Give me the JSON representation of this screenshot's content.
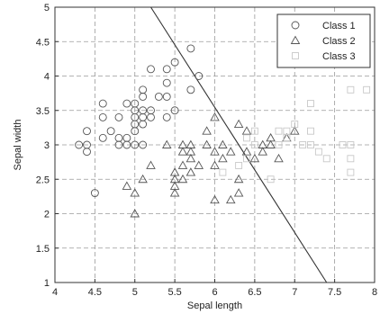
{
  "chart_data": {
    "type": "scatter",
    "title": "",
    "xlabel": "Sepal length",
    "ylabel": "Sepal width",
    "xlim": [
      4,
      8
    ],
    "ylim": [
      1,
      5
    ],
    "xticks": [
      "4",
      "4.5",
      "5",
      "5.5",
      "6",
      "6.5",
      "7",
      "7.5",
      "8"
    ],
    "yticks": [
      "1",
      "1.5",
      "2",
      "2.5",
      "3",
      "3.5",
      "4",
      "4.5",
      "5"
    ],
    "grid": true,
    "legend_position": "top-right",
    "series": [
      {
        "name": "Class 1",
        "marker": "circle",
        "color": "#555555",
        "points": [
          [
            4.3,
            3.0
          ],
          [
            4.4,
            2.9
          ],
          [
            4.4,
            3.0
          ],
          [
            4.4,
            3.2
          ],
          [
            4.5,
            2.3
          ],
          [
            4.6,
            3.1
          ],
          [
            4.6,
            3.4
          ],
          [
            4.6,
            3.6
          ],
          [
            4.7,
            3.2
          ],
          [
            4.8,
            3.0
          ],
          [
            4.8,
            3.1
          ],
          [
            4.8,
            3.4
          ],
          [
            4.9,
            3.0
          ],
          [
            4.9,
            3.1
          ],
          [
            4.9,
            3.6
          ],
          [
            5.0,
            3.0
          ],
          [
            5.0,
            3.2
          ],
          [
            5.0,
            3.3
          ],
          [
            5.0,
            3.4
          ],
          [
            5.0,
            3.5
          ],
          [
            5.0,
            3.6
          ],
          [
            5.1,
            3.3
          ],
          [
            5.1,
            3.4
          ],
          [
            5.1,
            3.5
          ],
          [
            5.1,
            3.7
          ],
          [
            5.1,
            3.8
          ],
          [
            5.2,
            3.4
          ],
          [
            5.2,
            3.5
          ],
          [
            5.2,
            4.1
          ],
          [
            5.3,
            3.7
          ],
          [
            5.4,
            3.4
          ],
          [
            5.4,
            3.7
          ],
          [
            5.4,
            3.9
          ],
          [
            5.5,
            3.5
          ],
          [
            5.5,
            4.2
          ],
          [
            5.7,
            3.8
          ],
          [
            5.7,
            4.4
          ],
          [
            5.8,
            4.0
          ],
          [
            5.4,
            4.1
          ],
          [
            5.1,
            3.0
          ]
        ]
      },
      {
        "name": "Class 2",
        "marker": "triangle",
        "color": "#555555",
        "points": [
          [
            4.9,
            2.4
          ],
          [
            5.0,
            2.0
          ],
          [
            5.0,
            2.3
          ],
          [
            5.1,
            2.5
          ],
          [
            5.2,
            2.7
          ],
          [
            5.5,
            2.3
          ],
          [
            5.5,
            2.4
          ],
          [
            5.5,
            2.5
          ],
          [
            5.5,
            2.6
          ],
          [
            5.6,
            2.5
          ],
          [
            5.6,
            2.7
          ],
          [
            5.6,
            2.9
          ],
          [
            5.6,
            3.0
          ],
          [
            5.7,
            2.6
          ],
          [
            5.7,
            2.8
          ],
          [
            5.7,
            2.9
          ],
          [
            5.7,
            3.0
          ],
          [
            5.8,
            2.7
          ],
          [
            5.9,
            3.0
          ],
          [
            5.9,
            3.2
          ],
          [
            6.0,
            2.2
          ],
          [
            6.0,
            2.7
          ],
          [
            6.0,
            2.9
          ],
          [
            6.0,
            3.4
          ],
          [
            6.1,
            2.8
          ],
          [
            6.1,
            3.0
          ],
          [
            6.2,
            2.2
          ],
          [
            6.2,
            2.9
          ],
          [
            6.3,
            2.3
          ],
          [
            6.3,
            2.5
          ],
          [
            6.3,
            3.3
          ],
          [
            6.4,
            2.9
          ],
          [
            6.4,
            3.2
          ],
          [
            6.5,
            2.8
          ],
          [
            6.6,
            2.9
          ],
          [
            6.6,
            3.0
          ],
          [
            6.7,
            3.0
          ],
          [
            6.7,
            3.1
          ],
          [
            6.8,
            2.8
          ],
          [
            6.9,
            3.1
          ],
          [
            7.0,
            3.2
          ],
          [
            5.4,
            3.0
          ]
        ]
      },
      {
        "name": "Class 3",
        "marker": "square",
        "color": "#c8c8c8",
        "points": [
          [
            6.1,
            2.6
          ],
          [
            6.3,
            2.7
          ],
          [
            6.4,
            2.8
          ],
          [
            6.5,
            3.0
          ],
          [
            6.7,
            2.5
          ],
          [
            6.8,
            3.0
          ],
          [
            6.9,
            3.2
          ],
          [
            7.0,
            3.3
          ],
          [
            7.2,
            3.0
          ],
          [
            7.2,
            3.2
          ],
          [
            7.2,
            3.6
          ],
          [
            7.3,
            2.9
          ],
          [
            7.4,
            2.8
          ],
          [
            7.6,
            3.0
          ],
          [
            7.7,
            2.6
          ],
          [
            7.7,
            2.8
          ],
          [
            7.7,
            3.0
          ],
          [
            7.7,
            3.8
          ],
          [
            7.9,
            3.8
          ],
          [
            6.4,
            3.1
          ],
          [
            6.8,
            3.2
          ],
          [
            7.1,
            3.0
          ],
          [
            6.9,
            3.1
          ],
          [
            6.5,
            3.2
          ]
        ]
      }
    ],
    "decision_line": {
      "points": [
        [
          5.2,
          5.0
        ],
        [
          7.4,
          1.0
        ]
      ],
      "color": "#333333"
    }
  }
}
